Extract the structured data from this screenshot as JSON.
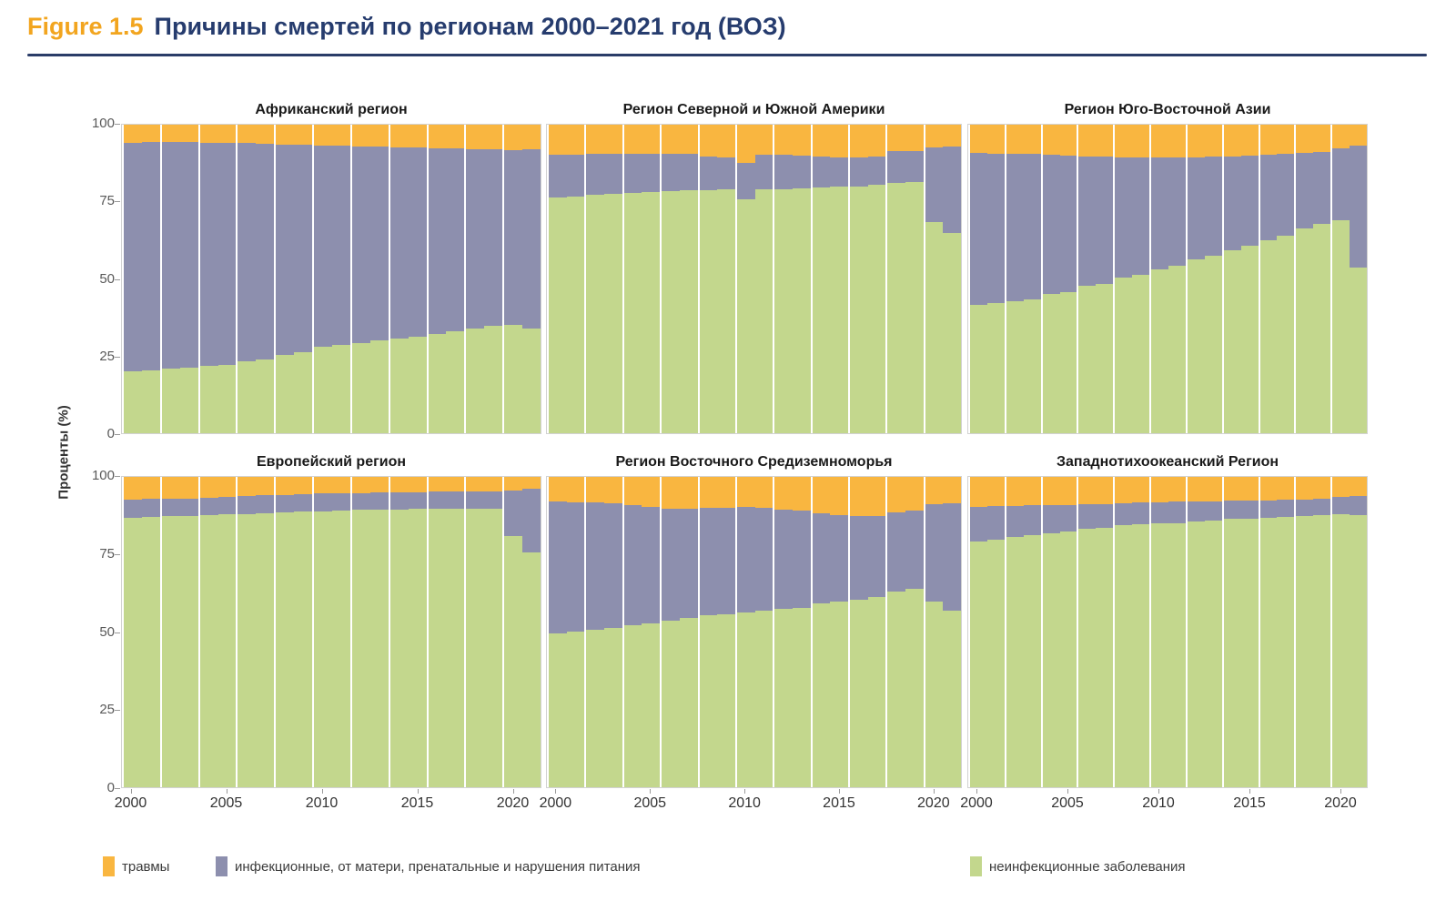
{
  "header": {
    "figure_label": "Figure 1.5",
    "title": "Причины смертей по регионам 2000–2021 год (ВОЗ)"
  },
  "axes": {
    "ylabel": "Проценты (%)",
    "y_ticks": [
      100,
      75,
      50,
      25,
      0
    ],
    "x_ticks": [
      2000,
      2005,
      2010,
      2015,
      2020
    ]
  },
  "years": [
    2000,
    2001,
    2002,
    2003,
    2004,
    2005,
    2006,
    2007,
    2008,
    2009,
    2010,
    2011,
    2012,
    2013,
    2014,
    2015,
    2016,
    2017,
    2018,
    2019,
    2020,
    2021
  ],
  "colors": {
    "injuries": "#F9B640",
    "infectious": "#8D8FAE",
    "ncd": "#C3D78D",
    "title_navy": "#263C6E",
    "figure_label_orange": "#F2A51F"
  },
  "legend": {
    "items": [
      {
        "key": "injuries",
        "label": "травмы"
      },
      {
        "key": "infectious",
        "label": "инфекционные, от матери, пренатальные и нарушения питания"
      },
      {
        "key": "ncd",
        "label": "неинфекционные заболевания"
      }
    ]
  },
  "chart_data": [
    {
      "type": "bar",
      "stacked_percent": true,
      "title": "Африканский регион",
      "ylim": [
        0,
        100
      ],
      "x_range": [
        2000,
        2021
      ],
      "grid": "vertical-white-every-2-years",
      "series": [
        {
          "name": "неинфекционные заболевания",
          "key": "ncd",
          "values": [
            20.0,
            20.4,
            20.9,
            21.3,
            21.8,
            22.2,
            23.4,
            24.0,
            25.5,
            26.3,
            28.0,
            28.6,
            29.3,
            30.0,
            30.6,
            31.2,
            32.2,
            33.1,
            34.0,
            34.8,
            35.0,
            33.8
          ]
        },
        {
          "name": "инфекционные, от матери, пренатальные и нарушения питания",
          "key": "infectious",
          "values": [
            74.2,
            73.9,
            73.5,
            73.0,
            72.4,
            71.9,
            70.6,
            69.8,
            68.1,
            67.1,
            65.2,
            64.5,
            63.6,
            62.8,
            62.0,
            61.3,
            60.2,
            59.1,
            58.1,
            57.2,
            56.8,
            58.2
          ]
        },
        {
          "name": "травмы",
          "key": "injuries",
          "values": [
            5.8,
            5.7,
            5.6,
            5.7,
            5.8,
            5.9,
            6.0,
            6.2,
            6.4,
            6.6,
            6.8,
            6.9,
            7.1,
            7.2,
            7.4,
            7.5,
            7.6,
            7.8,
            7.9,
            8.0,
            8.2,
            8.0
          ]
        }
      ]
    },
    {
      "type": "bar",
      "stacked_percent": true,
      "title": "Регион Северной и Южной Америки",
      "ylim": [
        0,
        100
      ],
      "x_range": [
        2000,
        2021
      ],
      "grid": "vertical-white-every-2-years",
      "series": [
        {
          "name": "неинфекционные заболевания",
          "key": "ncd",
          "values": [
            76.5,
            76.8,
            77.2,
            77.5,
            77.8,
            78.1,
            78.4,
            78.7,
            78.9,
            79.0,
            75.8,
            79.0,
            79.2,
            79.4,
            79.7,
            79.9,
            80.0,
            80.5,
            81.0,
            81.3,
            68.5,
            65.0
          ]
        },
        {
          "name": "инфекционные, от матери, пренатальные и нарушения питания",
          "key": "infectious",
          "values": [
            13.8,
            13.6,
            13.3,
            13.0,
            12.8,
            12.5,
            12.3,
            11.9,
            10.9,
            10.5,
            11.8,
            11.2,
            11.0,
            10.6,
            9.9,
            9.5,
            9.5,
            9.3,
            10.3,
            10.2,
            24.1,
            28.0
          ]
        },
        {
          "name": "травмы",
          "key": "injuries",
          "values": [
            9.7,
            9.6,
            9.5,
            9.5,
            9.4,
            9.4,
            9.3,
            9.4,
            10.2,
            10.5,
            12.4,
            9.8,
            9.8,
            10.0,
            10.4,
            10.6,
            10.5,
            10.2,
            8.7,
            8.5,
            7.4,
            7.0
          ]
        }
      ]
    },
    {
      "type": "bar",
      "stacked_percent": true,
      "title": "Регион Юго-Восточной Азии",
      "ylim": [
        0,
        100
      ],
      "x_range": [
        2000,
        2021
      ],
      "grid": "vertical-white-every-2-years",
      "series": [
        {
          "name": "неинфекционные заболевания",
          "key": "ncd",
          "values": [
            41.5,
            42.1,
            42.8,
            43.5,
            45.1,
            45.7,
            47.8,
            48.5,
            50.4,
            51.4,
            53.2,
            54.4,
            56.2,
            57.4,
            59.4,
            60.7,
            62.6,
            64.1,
            66.3,
            67.9,
            69.1,
            53.8
          ]
        },
        {
          "name": "инфекционные, от матери, пренатальные и нарушения питания",
          "key": "infectious",
          "values": [
            49.3,
            48.6,
            47.8,
            47.0,
            45.1,
            44.3,
            42.0,
            41.1,
            39.0,
            37.9,
            36.1,
            35.0,
            33.3,
            32.2,
            30.4,
            29.3,
            27.6,
            26.4,
            24.5,
            23.2,
            23.3,
            39.4
          ]
        },
        {
          "name": "травмы",
          "key": "injuries",
          "values": [
            9.2,
            9.3,
            9.4,
            9.5,
            9.8,
            10.0,
            10.2,
            10.4,
            10.6,
            10.7,
            10.7,
            10.6,
            10.5,
            10.4,
            10.2,
            10.0,
            9.8,
            9.5,
            9.2,
            8.9,
            7.6,
            6.8
          ]
        }
      ]
    },
    {
      "type": "bar",
      "stacked_percent": true,
      "title": "Европейский регион",
      "ylim": [
        0,
        100
      ],
      "x_range": [
        2000,
        2021
      ],
      "grid": "vertical-white-every-2-years",
      "series": [
        {
          "name": "неинфекционные заболевания",
          "key": "ncd",
          "values": [
            86.9,
            87.1,
            87.3,
            87.5,
            87.7,
            87.9,
            88.1,
            88.3,
            88.6,
            88.8,
            89.0,
            89.1,
            89.3,
            89.4,
            89.5,
            89.6,
            89.7,
            89.7,
            89.8,
            89.6,
            81.0,
            75.6
          ]
        },
        {
          "name": "инфекционные, от матери, пренатальные и нарушения питания",
          "key": "infectious",
          "values": [
            5.9,
            5.8,
            5.7,
            5.6,
            5.6,
            5.6,
            5.7,
            5.7,
            5.6,
            5.6,
            5.6,
            5.6,
            5.5,
            5.5,
            5.5,
            5.5,
            5.5,
            5.6,
            5.6,
            5.8,
            14.6,
            20.5
          ]
        },
        {
          "name": "травмы",
          "key": "injuries",
          "values": [
            7.2,
            7.1,
            7.0,
            6.9,
            6.7,
            6.5,
            6.2,
            6.0,
            5.8,
            5.6,
            5.4,
            5.3,
            5.2,
            5.1,
            5.0,
            4.9,
            4.8,
            4.7,
            4.6,
            4.6,
            4.4,
            3.9
          ]
        }
      ]
    },
    {
      "type": "bar",
      "stacked_percent": true,
      "title": "Регион Восточного Средиземноморья",
      "ylim": [
        0,
        100
      ],
      "x_range": [
        2000,
        2021
      ],
      "grid": "vertical-white-every-2-years",
      "series": [
        {
          "name": "неинфекционные заболевания",
          "key": "ncd",
          "values": [
            49.5,
            50.0,
            50.8,
            51.2,
            52.1,
            52.9,
            53.8,
            54.5,
            55.3,
            55.7,
            56.4,
            56.9,
            57.5,
            57.9,
            59.3,
            59.8,
            60.5,
            61.3,
            62.9,
            63.9,
            59.8,
            56.9
          ]
        },
        {
          "name": "инфекционные, от матери, пренатальные и нарушения питания",
          "key": "infectious",
          "values": [
            42.6,
            41.9,
            40.9,
            40.2,
            38.9,
            37.4,
            35.8,
            35.2,
            34.7,
            34.4,
            33.9,
            33.2,
            32.0,
            31.2,
            28.9,
            27.8,
            26.8,
            26.2,
            25.6,
            25.3,
            31.5,
            34.7
          ]
        },
        {
          "name": "травмы",
          "key": "injuries",
          "values": [
            7.9,
            8.1,
            8.3,
            8.6,
            9.0,
            9.7,
            10.4,
            10.3,
            10.0,
            9.9,
            9.7,
            9.9,
            10.5,
            10.9,
            11.8,
            12.4,
            12.7,
            12.5,
            11.5,
            10.8,
            8.7,
            8.4
          ]
        }
      ]
    },
    {
      "type": "bar",
      "stacked_percent": true,
      "title": "Западнотихоокеанский Регион",
      "ylim": [
        0,
        100
      ],
      "x_range": [
        2000,
        2021
      ],
      "grid": "vertical-white-every-2-years",
      "series": [
        {
          "name": "неинфекционные заболевания",
          "key": "ncd",
          "values": [
            79.2,
            79.7,
            80.7,
            81.1,
            81.8,
            82.4,
            83.2,
            83.7,
            84.5,
            84.7,
            85.0,
            85.1,
            85.6,
            85.9,
            86.4,
            86.6,
            86.9,
            87.2,
            87.5,
            87.8,
            88.1,
            87.8
          ]
        },
        {
          "name": "инфекционные, от матери, пренатальные и нарушения питания",
          "key": "infectious",
          "values": [
            11.2,
            10.9,
            10.0,
            9.7,
            9.1,
            8.6,
            7.9,
            7.5,
            7.0,
            7.0,
            6.9,
            6.9,
            6.5,
            6.3,
            5.9,
            5.8,
            5.6,
            5.4,
            5.3,
            5.2,
            5.5,
            6.1
          ]
        },
        {
          "name": "травмы",
          "key": "injuries",
          "values": [
            9.6,
            9.4,
            9.3,
            9.2,
            9.1,
            9.0,
            8.9,
            8.8,
            8.5,
            8.3,
            8.1,
            8.0,
            7.9,
            7.8,
            7.7,
            7.6,
            7.5,
            7.4,
            7.2,
            7.0,
            6.4,
            6.1
          ]
        }
      ]
    }
  ]
}
